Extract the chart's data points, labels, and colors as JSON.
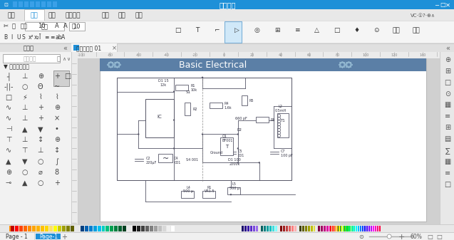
{
  "title_bar_text": "亿图画示",
  "menu_items": [
    "文件",
    "开始",
    "插入",
    "图画符号",
    "视图",
    "符号",
    "帮助"
  ],
  "active_menu": "开始",
  "tab_text": "基本电路图 01",
  "diagram_title": "Basic Electrical",
  "bg_color": "#d6d6d6",
  "title_bar_color": "#1e90d8",
  "menu_bar_color": "#f0f0f0",
  "toolbar_color": "#f5f5f5",
  "canvas_color": "#ffffff",
  "header_color": "#5b7fa6",
  "left_panel_color": "#f0f0f0",
  "right_panel_color": "#e8e8e8",
  "ruler_color": "#ebebeb",
  "ruler_text_color": "#888888",
  "bottom_bar_color": "#f0f0f0",
  "tab_bar_color": "#e0e0e0",
  "diagram_border_color": "#b0b0b0",
  "wire_color": "#555566",
  "component_color": "#333344"
}
